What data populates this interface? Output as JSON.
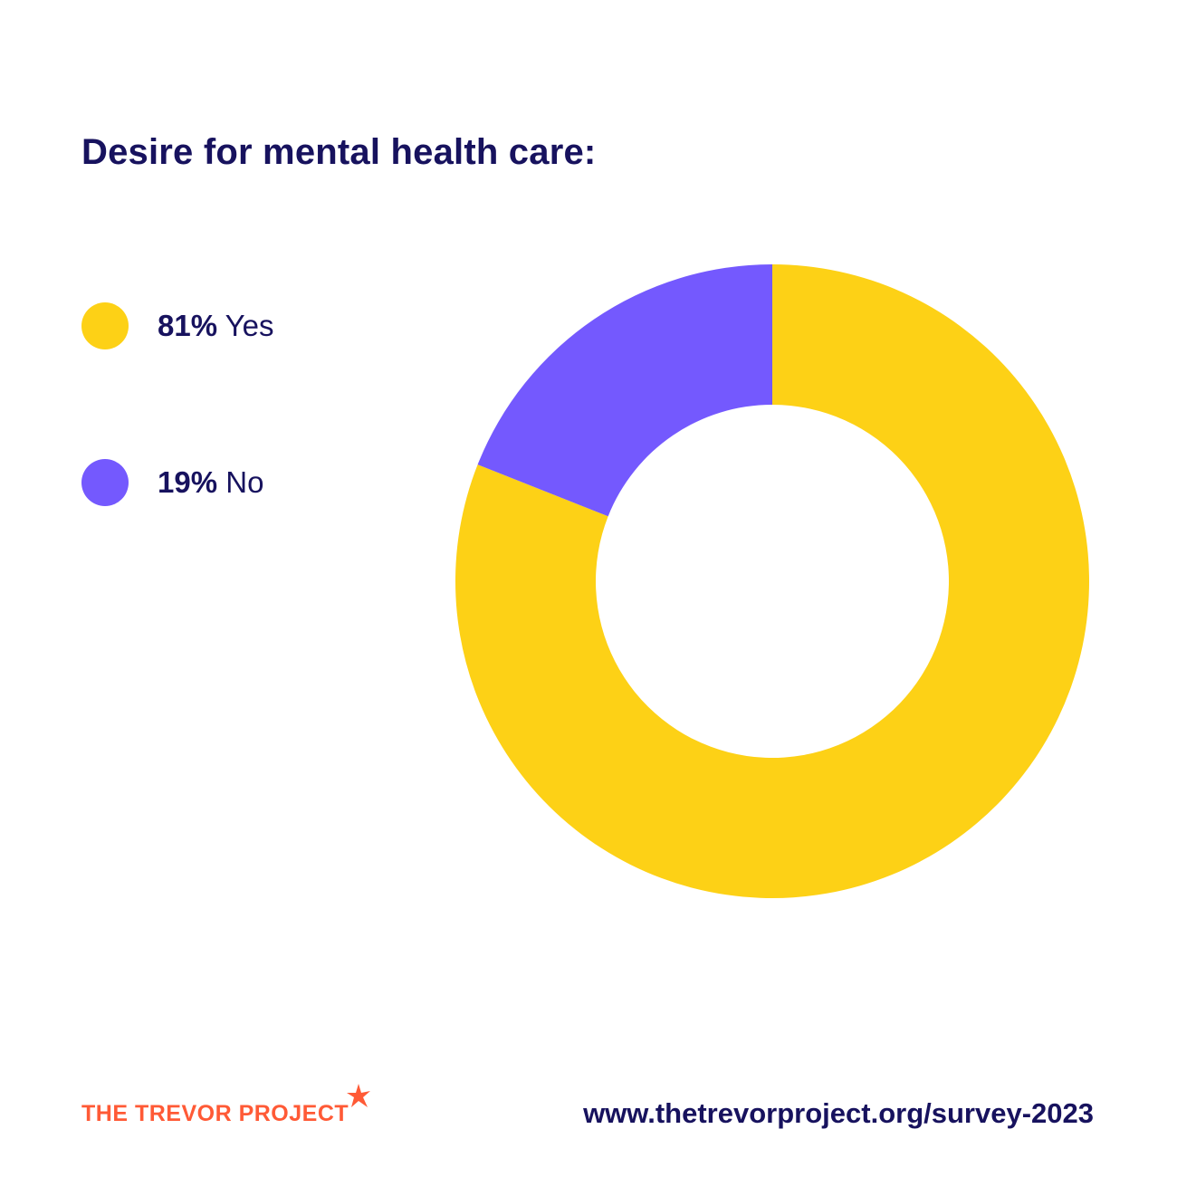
{
  "chart_data": {
    "type": "pie",
    "title": "Desire for mental health care:",
    "donut": true,
    "slices": [
      {
        "label": "Yes",
        "value": 81,
        "value_label": "81%",
        "color": "#fdd116"
      },
      {
        "label": "No",
        "value": 19,
        "value_label": "19%",
        "color": "#7459fe"
      }
    ],
    "legend_position": "left"
  },
  "footer": {
    "logo_text": "THE TREVOR PROJECT",
    "logo_icon": "star-icon",
    "url": "www.thetrevorproject.org/survey-2023"
  },
  "colors": {
    "text": "#17125e",
    "brand": "#ff5a36",
    "background": "#ffffff"
  }
}
